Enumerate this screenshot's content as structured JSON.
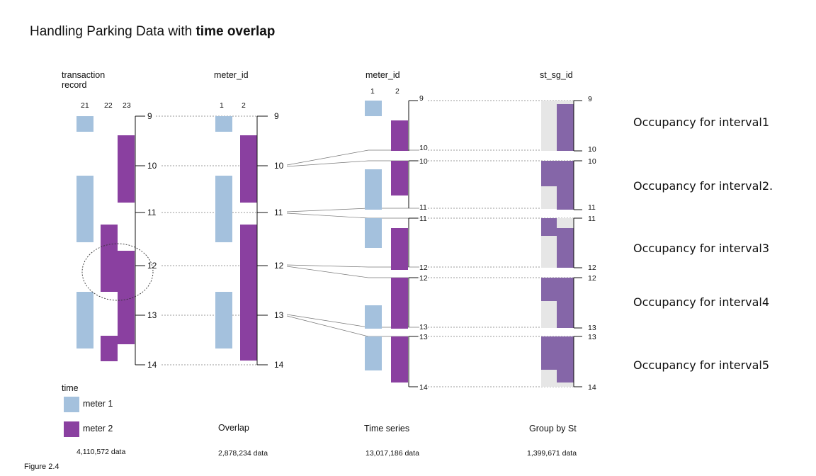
{
  "title": {
    "plain": "Handling Parking Data with ",
    "bold": "time overlap"
  },
  "colors": {
    "meter1": "#a4c1dd",
    "meter2": "#8a40a0",
    "grouped": "#8566a8",
    "empty": "#e6e6e6"
  },
  "panels": {
    "record": {
      "header": [
        "transaction",
        "record"
      ],
      "columns": [
        "21",
        "22",
        "23"
      ],
      "footer": "",
      "count": "4,110,572 data"
    },
    "overlap": {
      "header": "meter_id",
      "columns": [
        "1",
        "2"
      ],
      "footer": "Overlap",
      "count": "2,878,234 data"
    },
    "series": {
      "header": "meter_id",
      "columns": [
        "1",
        "2"
      ],
      "footer": "Time series",
      "count": "13,017,186 data"
    },
    "group": {
      "header": "st_sg_id",
      "footer": "Group by St",
      "count": "1,399,671 data"
    }
  },
  "time_labels": [
    "9",
    "10",
    "11",
    "12",
    "13",
    "14"
  ],
  "legend": {
    "title": "time",
    "meter1": "meter 1",
    "meter2": "meter 2"
  },
  "occupancy": [
    "Occupancy for interval1",
    "Occupancy for interval2.",
    "Occupancy for interval3",
    "Occupancy for interval4",
    "Occupancy for interval5"
  ],
  "figure_label": "Figure 2.4"
}
